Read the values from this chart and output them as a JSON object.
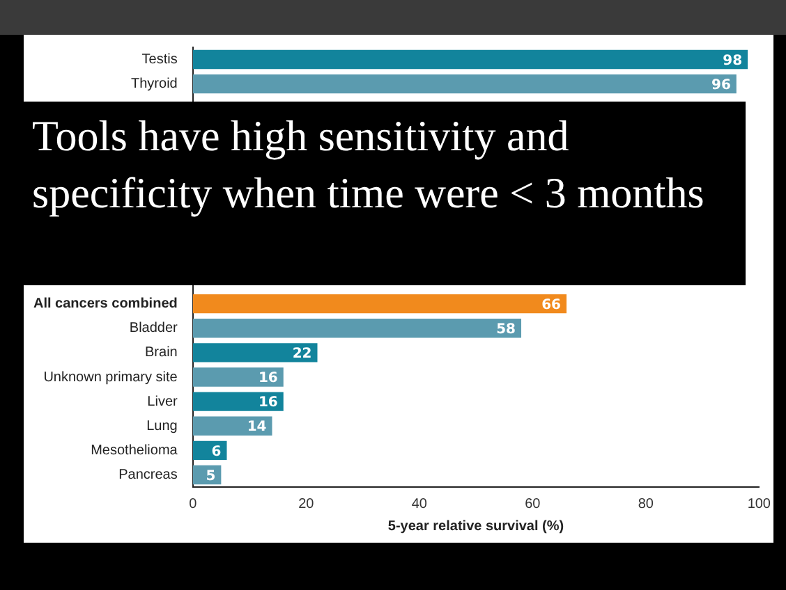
{
  "chart_data": {
    "type": "bar",
    "orientation": "horizontal",
    "categories": [
      "Testis",
      "Thyroid",
      null,
      null,
      null,
      null,
      null,
      null,
      null,
      null,
      "All cancers combined",
      "Bladder",
      "Brain",
      "Unknown primary site",
      "Liver",
      "Lung",
      "Mesothelioma",
      "Pancreas"
    ],
    "values": [
      98,
      96,
      null,
      null,
      null,
      null,
      null,
      null,
      null,
      null,
      66,
      58,
      22,
      16,
      16,
      14,
      6,
      5
    ],
    "value_labels": [
      "98",
      "96",
      null,
      null,
      null,
      null,
      null,
      null,
      null,
      null,
      "66",
      "58",
      "22",
      "16",
      "16",
      "14",
      "6",
      "5"
    ],
    "colors": [
      "#12849c",
      "#5b9baf",
      "#12849c",
      "#5b9baf",
      "#12849c",
      "#5b9baf",
      "#12849c",
      "#5b9baf",
      "#12849c",
      "#5b9baf",
      "#f18a1d",
      "#5b9baf",
      "#12849c",
      "#5b9baf",
      "#12849c",
      "#5b9baf",
      "#12849c",
      "#5b9baf"
    ],
    "xlim": [
      0,
      100
    ],
    "xticks": [
      0,
      20,
      40,
      60,
      80,
      100
    ],
    "xlabel": "5-year relative survival (%)",
    "annotations": [
      "Tools have high sensitivity and specificity when time were < 3 months"
    ],
    "legend": false
  }
}
